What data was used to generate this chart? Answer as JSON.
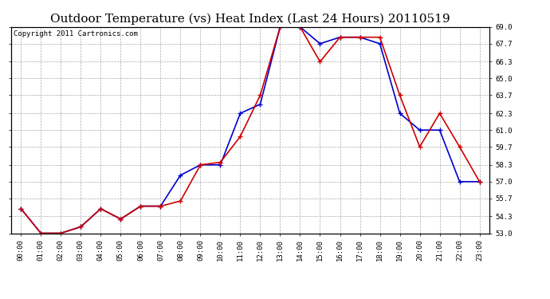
{
  "title": "Outdoor Temperature (vs) Heat Index (Last 24 Hours) 20110519",
  "copyright": "Copyright 2011 Cartronics.com",
  "x_labels": [
    "00:00",
    "01:00",
    "02:00",
    "03:00",
    "04:00",
    "05:00",
    "06:00",
    "07:00",
    "08:00",
    "09:00",
    "10:00",
    "11:00",
    "12:00",
    "13:00",
    "14:00",
    "15:00",
    "16:00",
    "17:00",
    "18:00",
    "19:00",
    "20:00",
    "21:00",
    "22:00",
    "23:00"
  ],
  "temp_data": [
    54.9,
    53.0,
    53.0,
    53.5,
    54.9,
    54.1,
    55.1,
    55.1,
    55.5,
    58.3,
    58.5,
    60.5,
    63.7,
    69.0,
    69.0,
    66.3,
    68.2,
    68.2,
    68.2,
    63.7,
    59.7,
    62.3,
    59.7,
    57.0
  ],
  "heat_data": [
    54.9,
    53.0,
    53.0,
    53.5,
    54.9,
    54.1,
    55.1,
    55.1,
    57.5,
    58.3,
    58.3,
    62.3,
    63.0,
    69.0,
    69.0,
    67.7,
    68.2,
    68.2,
    67.7,
    62.3,
    61.0,
    61.0,
    57.0,
    57.0
  ],
  "temp_color": "#cc0000",
  "heat_color": "#0000cc",
  "ylim_min": 53.0,
  "ylim_max": 69.0,
  "yticks": [
    53.0,
    54.3,
    55.7,
    57.0,
    58.3,
    59.7,
    61.0,
    62.3,
    63.7,
    65.0,
    66.3,
    67.7,
    69.0
  ],
  "bg_color": "#ffffff",
  "grid_color": "#aaaaaa",
  "title_fontsize": 11,
  "copyright_fontsize": 6.5
}
